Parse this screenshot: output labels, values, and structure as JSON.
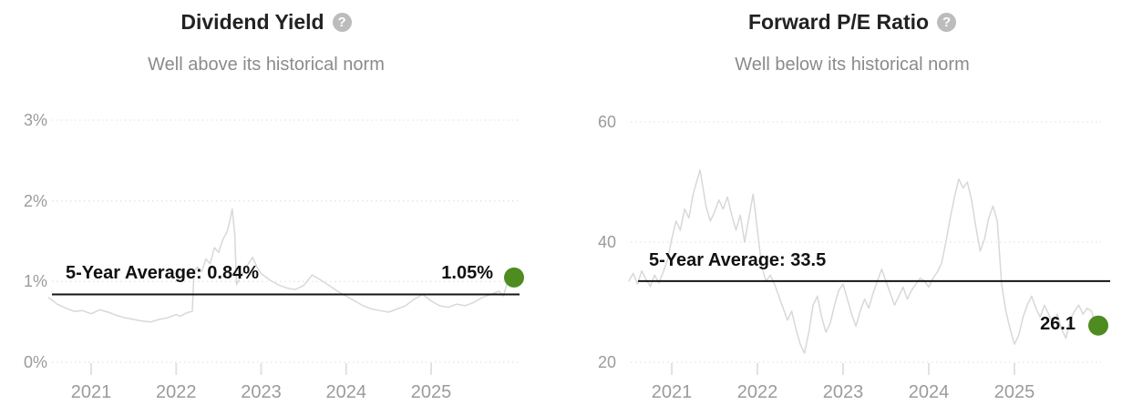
{
  "icons": {
    "help_glyph": "?"
  },
  "colors": {
    "background": "#ffffff",
    "title": "#222222",
    "subtitle": "#8b8b8b",
    "axis_label": "#9b9b9b",
    "annotation": "#111111",
    "grid_line": "#dcdcdc",
    "tick_mark": "#e2e2e2",
    "series_line": "#d8d8d8",
    "average_line": "#141414",
    "current_dot": "#4e8b21",
    "help_icon_bg": "#bcbcbc",
    "help_icon_fg": "#ffffff"
  },
  "chart_data": [
    {
      "type": "line",
      "title": "Dividend Yield",
      "subtitle": "Well above its historical norm",
      "legend": "none",
      "grid": "dotted horizontal lines",
      "y_axis": {
        "range": [
          0,
          3.25
        ],
        "ticks": [
          {
            "value": 3,
            "label": "3%"
          },
          {
            "value": 2,
            "label": "2%"
          },
          {
            "value": 1,
            "label": "1%"
          },
          {
            "value": 0,
            "label": "0%"
          }
        ]
      },
      "x_axis": {
        "range": [
          2020.5,
          2026.0
        ],
        "ticks": [
          {
            "value": 2021,
            "label": "2021"
          },
          {
            "value": 2022,
            "label": "2022"
          },
          {
            "value": 2023,
            "label": "2023"
          },
          {
            "value": 2024,
            "label": "2024"
          },
          {
            "value": 2025,
            "label": "2025"
          }
        ]
      },
      "average_line": {
        "value": 0.84,
        "label": "5-Year Average: 0.84%"
      },
      "current_point": {
        "value": 1.05,
        "label": "1.05%"
      },
      "series": [
        {
          "name": "dividend-yield",
          "points": [
            [
              2020.5,
              0.8
            ],
            [
              2020.6,
              0.72
            ],
            [
              2020.7,
              0.67
            ],
            [
              2020.8,
              0.63
            ],
            [
              2020.9,
              0.64
            ],
            [
              2021.0,
              0.6
            ],
            [
              2021.1,
              0.65
            ],
            [
              2021.2,
              0.62
            ],
            [
              2021.3,
              0.58
            ],
            [
              2021.4,
              0.55
            ],
            [
              2021.5,
              0.53
            ],
            [
              2021.6,
              0.51
            ],
            [
              2021.7,
              0.5
            ],
            [
              2021.8,
              0.53
            ],
            [
              2021.9,
              0.55
            ],
            [
              2022.0,
              0.59
            ],
            [
              2022.05,
              0.57
            ],
            [
              2022.1,
              0.6
            ],
            [
              2022.15,
              0.62
            ],
            [
              2022.19,
              0.63
            ],
            [
              2022.21,
              1.12
            ],
            [
              2022.25,
              1.18
            ],
            [
              2022.3,
              1.12
            ],
            [
              2022.35,
              1.28
            ],
            [
              2022.4,
              1.22
            ],
            [
              2022.45,
              1.42
            ],
            [
              2022.5,
              1.36
            ],
            [
              2022.55,
              1.52
            ],
            [
              2022.6,
              1.62
            ],
            [
              2022.63,
              1.74
            ],
            [
              2022.66,
              1.9
            ],
            [
              2022.69,
              1.58
            ],
            [
              2022.71,
              0.96
            ],
            [
              2022.76,
              1.06
            ],
            [
              2022.8,
              1.14
            ],
            [
              2022.85,
              1.22
            ],
            [
              2022.9,
              1.3
            ],
            [
              2022.95,
              1.18
            ],
            [
              2023.0,
              1.1
            ],
            [
              2023.1,
              1.02
            ],
            [
              2023.2,
              0.96
            ],
            [
              2023.3,
              0.92
            ],
            [
              2023.4,
              0.9
            ],
            [
              2023.5,
              0.95
            ],
            [
              2023.6,
              1.08
            ],
            [
              2023.7,
              1.02
            ],
            [
              2023.8,
              0.95
            ],
            [
              2023.9,
              0.88
            ],
            [
              2024.0,
              0.82
            ],
            [
              2024.1,
              0.76
            ],
            [
              2024.2,
              0.7
            ],
            [
              2024.3,
              0.66
            ],
            [
              2024.4,
              0.64
            ],
            [
              2024.5,
              0.62
            ],
            [
              2024.6,
              0.66
            ],
            [
              2024.7,
              0.7
            ],
            [
              2024.8,
              0.78
            ],
            [
              2024.9,
              0.84
            ],
            [
              2025.0,
              0.76
            ],
            [
              2025.1,
              0.7
            ],
            [
              2025.2,
              0.68
            ],
            [
              2025.3,
              0.72
            ],
            [
              2025.4,
              0.7
            ],
            [
              2025.5,
              0.74
            ],
            [
              2025.6,
              0.8
            ],
            [
              2025.7,
              0.84
            ],
            [
              2025.8,
              0.88
            ],
            [
              2025.85,
              0.82
            ],
            [
              2025.9,
              1.0
            ],
            [
              2025.95,
              1.05
            ]
          ]
        }
      ]
    },
    {
      "type": "line",
      "title": "Forward P/E Ratio",
      "subtitle": "Well below its historical norm",
      "legend": "none",
      "grid": "dotted horizontal lines",
      "y_axis": {
        "range": [
          20,
          62
        ],
        "ticks": [
          {
            "value": 60,
            "label": "60"
          },
          {
            "value": 40,
            "label": "40"
          },
          {
            "value": 20,
            "label": "20"
          }
        ]
      },
      "x_axis": {
        "range": [
          2020.5,
          2026.0
        ],
        "ticks": [
          {
            "value": 2021,
            "label": "2021"
          },
          {
            "value": 2022,
            "label": "2022"
          },
          {
            "value": 2023,
            "label": "2023"
          },
          {
            "value": 2024,
            "label": "2024"
          },
          {
            "value": 2025,
            "label": "2025"
          }
        ]
      },
      "average_line": {
        "value": 33.5,
        "label": "5-Year Average: 33.5"
      },
      "current_point": {
        "value": 26.1,
        "label": "26.1"
      },
      "series": [
        {
          "name": "forward-pe-ratio",
          "points": [
            [
              2020.5,
              33.5
            ],
            [
              2020.55,
              34.8
            ],
            [
              2020.6,
              33.0
            ],
            [
              2020.65,
              35.2
            ],
            [
              2020.7,
              33.8
            ],
            [
              2020.75,
              32.6
            ],
            [
              2020.8,
              34.5
            ],
            [
              2020.85,
              33.2
            ],
            [
              2020.9,
              35.0
            ],
            [
              2020.95,
              37.0
            ],
            [
              2021.0,
              40.5
            ],
            [
              2021.05,
              43.5
            ],
            [
              2021.1,
              42.0
            ],
            [
              2021.15,
              45.5
            ],
            [
              2021.2,
              44.0
            ],
            [
              2021.25,
              48.0
            ],
            [
              2021.3,
              50.5
            ],
            [
              2021.33,
              52.0
            ],
            [
              2021.36,
              49.5
            ],
            [
              2021.4,
              46.0
            ],
            [
              2021.45,
              43.5
            ],
            [
              2021.5,
              45.0
            ],
            [
              2021.55,
              47.0
            ],
            [
              2021.6,
              45.5
            ],
            [
              2021.65,
              47.5
            ],
            [
              2021.7,
              44.5
            ],
            [
              2021.75,
              42.0
            ],
            [
              2021.8,
              44.5
            ],
            [
              2021.85,
              40.0
            ],
            [
              2021.9,
              44.0
            ],
            [
              2021.95,
              48.0
            ],
            [
              2022.0,
              42.0
            ],
            [
              2022.05,
              36.0
            ],
            [
              2022.1,
              33.5
            ],
            [
              2022.15,
              34.5
            ],
            [
              2022.2,
              33.0
            ],
            [
              2022.25,
              31.0
            ],
            [
              2022.3,
              29.0
            ],
            [
              2022.35,
              27.0
            ],
            [
              2022.4,
              28.5
            ],
            [
              2022.45,
              25.5
            ],
            [
              2022.5,
              23.0
            ],
            [
              2022.55,
              21.5
            ],
            [
              2022.6,
              25.0
            ],
            [
              2022.65,
              29.5
            ],
            [
              2022.7,
              31.0
            ],
            [
              2022.75,
              27.5
            ],
            [
              2022.8,
              25.0
            ],
            [
              2022.85,
              26.5
            ],
            [
              2022.9,
              29.5
            ],
            [
              2022.95,
              32.0
            ],
            [
              2023.0,
              33.0
            ],
            [
              2023.05,
              30.5
            ],
            [
              2023.1,
              28.0
            ],
            [
              2023.15,
              26.0
            ],
            [
              2023.2,
              28.5
            ],
            [
              2023.25,
              30.5
            ],
            [
              2023.3,
              29.0
            ],
            [
              2023.35,
              31.5
            ],
            [
              2023.4,
              33.5
            ],
            [
              2023.45,
              35.5
            ],
            [
              2023.5,
              33.5
            ],
            [
              2023.55,
              31.5
            ],
            [
              2023.6,
              29.5
            ],
            [
              2023.65,
              31.0
            ],
            [
              2023.7,
              32.5
            ],
            [
              2023.75,
              30.5
            ],
            [
              2023.8,
              32.0
            ],
            [
              2023.85,
              33.0
            ],
            [
              2023.9,
              34.0
            ],
            [
              2023.95,
              33.5
            ],
            [
              2024.0,
              32.5
            ],
            [
              2024.05,
              34.0
            ],
            [
              2024.1,
              35.0
            ],
            [
              2024.15,
              36.5
            ],
            [
              2024.2,
              40.0
            ],
            [
              2024.25,
              44.0
            ],
            [
              2024.3,
              47.5
            ],
            [
              2024.35,
              50.5
            ],
            [
              2024.4,
              49.0
            ],
            [
              2024.45,
              50.0
            ],
            [
              2024.5,
              47.0
            ],
            [
              2024.55,
              42.5
            ],
            [
              2024.6,
              38.5
            ],
            [
              2024.65,
              40.5
            ],
            [
              2024.7,
              44.0
            ],
            [
              2024.75,
              46.0
            ],
            [
              2024.8,
              43.5
            ],
            [
              2024.85,
              33.0
            ],
            [
              2024.9,
              28.5
            ],
            [
              2024.95,
              25.5
            ],
            [
              2025.0,
              23.0
            ],
            [
              2025.05,
              24.5
            ],
            [
              2025.1,
              27.5
            ],
            [
              2025.15,
              29.5
            ],
            [
              2025.2,
              31.0
            ],
            [
              2025.25,
              29.0
            ],
            [
              2025.3,
              27.5
            ],
            [
              2025.35,
              29.5
            ],
            [
              2025.4,
              28.0
            ],
            [
              2025.45,
              26.5
            ],
            [
              2025.5,
              28.0
            ],
            [
              2025.55,
              25.5
            ],
            [
              2025.6,
              24.0
            ],
            [
              2025.65,
              27.0
            ],
            [
              2025.7,
              28.5
            ],
            [
              2025.75,
              29.5
            ],
            [
              2025.8,
              28.0
            ],
            [
              2025.85,
              29.0
            ],
            [
              2025.9,
              28.5
            ],
            [
              2025.95,
              26.1
            ]
          ]
        }
      ]
    }
  ]
}
